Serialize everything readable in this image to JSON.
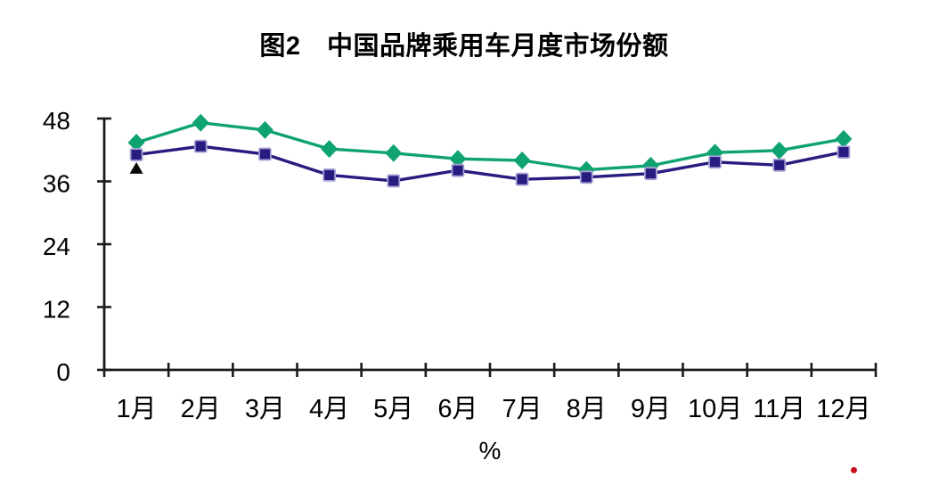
{
  "title": "图2　中国品牌乘用车月度市场份额",
  "chart_data": {
    "type": "line",
    "title": "图2　中国品牌乘用车月度市场份额",
    "categories": [
      "1月",
      "2月",
      "3月",
      "4月",
      "5月",
      "6月",
      "7月",
      "8月",
      "9月",
      "10月",
      "11月",
      "12月"
    ],
    "series": [
      {
        "name": "green-diamond-series",
        "marker": "diamond",
        "color": "#10a372",
        "values": [
          43.4,
          47.2,
          45.8,
          42.2,
          41.4,
          40.3,
          40.0,
          38.2,
          39.0,
          41.5,
          41.9,
          44.1
        ]
      },
      {
        "name": "navy-square-series",
        "marker": "square",
        "color": "#271c7f",
        "marker_edge": "#a9a2d6",
        "values": [
          41.1,
          42.7,
          41.2,
          37.2,
          36.1,
          38.1,
          36.4,
          36.8,
          37.5,
          39.7,
          39.1,
          41.6
        ]
      }
    ],
    "extra_points": [
      {
        "name": "black-triangle-point",
        "marker": "triangle",
        "color": "#0a0a0a",
        "category": "1月",
        "category_index": 0,
        "value": 38.5
      }
    ],
    "xlabel": "%",
    "ylabel": "",
    "ylim": [
      0,
      48
    ],
    "yticks": [
      0,
      12,
      24,
      36,
      48
    ],
    "grid": false,
    "legend": "none",
    "axis_color": "#1a1a1a"
  },
  "decorations": {
    "red_dot_color": "#c9101c"
  }
}
